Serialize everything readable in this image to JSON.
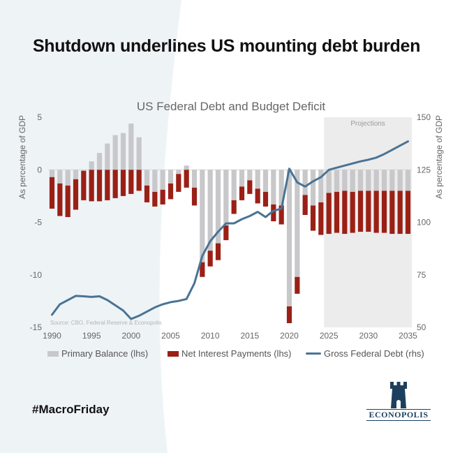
{
  "headline": "Shutdown underlines US mounting debt burden",
  "hashtag": "#MacroFriday",
  "logo": {
    "text": "ECONOPOLIS"
  },
  "colors": {
    "primary_balance": "#c8c8ca",
    "net_interest": "#9a2016",
    "gross_debt": "#4a7394",
    "projection_shade": "#ececec",
    "background_shape": "#eef3f6"
  },
  "chart_data": {
    "type": "bar",
    "title": "US Federal Debt and Budget Deficit",
    "ylabel_left": "As percentage of GDP",
    "ylabel_right": "As percentage of GDP",
    "source": "Source: CBO, Federal Reserve  & Econopolis",
    "projections_label": "Projections",
    "projection_start": 2025,
    "ylim_left": [
      -15,
      5
    ],
    "ylim_right": [
      50,
      150
    ],
    "yticks_left": [
      5,
      0,
      -5,
      -10,
      -15
    ],
    "yticks_right": [
      150,
      125,
      100,
      75,
      50
    ],
    "xticks": [
      1990,
      1995,
      2000,
      2005,
      2010,
      2015,
      2020,
      2025,
      2030,
      2035
    ],
    "years": [
      1990,
      1991,
      1992,
      1993,
      1994,
      1995,
      1996,
      1997,
      1998,
      1999,
      2000,
      2001,
      2002,
      2003,
      2004,
      2005,
      2006,
      2007,
      2008,
      2009,
      2010,
      2011,
      2012,
      2013,
      2014,
      2015,
      2016,
      2017,
      2018,
      2019,
      2020,
      2021,
      2022,
      2023,
      2024,
      2025,
      2026,
      2027,
      2028,
      2029,
      2030,
      2031,
      2032,
      2033,
      2034,
      2035
    ],
    "legend": [
      "Primary Balance (lhs)",
      "Net Interest Payments (lhs)",
      "Gross Federal Debt (rhs)"
    ],
    "series": [
      {
        "name": "Primary Balance (lhs)",
        "axis": "left",
        "kind": "bar",
        "values": [
          -0.7,
          -1.3,
          -1.5,
          -0.9,
          -0.1,
          0.8,
          1.6,
          2.5,
          3.3,
          3.5,
          4.4,
          3.1,
          -1.5,
          -2.1,
          -1.9,
          -1.3,
          -0.4,
          0.4,
          -1.7,
          -8.8,
          -7.7,
          -7.0,
          -5.3,
          -2.9,
          -1.6,
          -1.0,
          -1.8,
          -2.1,
          -3.3,
          -3.4,
          -13.0,
          -10.2,
          -2.4,
          -3.4,
          -3.1,
          -2.2,
          -2.1,
          -2.0,
          -2.1,
          -2.0,
          -2.0,
          -2.0,
          -2.0,
          -2.0,
          -2.0,
          -2.0
        ]
      },
      {
        "name": "Net Interest Payments (lhs)",
        "axis": "left",
        "kind": "bar",
        "values": [
          -3.0,
          -3.1,
          -3.0,
          -2.9,
          -2.8,
          -3.0,
          -3.0,
          -2.9,
          -2.7,
          -2.5,
          -2.3,
          -2.0,
          -1.6,
          -1.4,
          -1.4,
          -1.5,
          -1.7,
          -1.7,
          -1.7,
          -1.4,
          -1.5,
          -1.6,
          -1.4,
          -1.3,
          -1.3,
          -1.3,
          -1.4,
          -1.4,
          -1.6,
          -1.8,
          -1.6,
          -1.6,
          -1.9,
          -2.4,
          -3.1,
          -3.9,
          -3.9,
          -4.1,
          -3.9,
          -3.9,
          -3.9,
          -4.0,
          -4.0,
          -4.1,
          -4.1,
          -4.1
        ]
      },
      {
        "name": "Gross Federal Debt (rhs)",
        "axis": "right",
        "kind": "line",
        "values": [
          56,
          61,
          63,
          65,
          64.8,
          64.5,
          64.8,
          63,
          60.5,
          58,
          54,
          55.5,
          57.5,
          59.5,
          61,
          62,
          62.6,
          63.5,
          71,
          84,
          91,
          95.5,
          99.5,
          99.5,
          101.5,
          103,
          105,
          102.5,
          105.5,
          106.5,
          125.5,
          119,
          117,
          119.5,
          121.5,
          125,
          126,
          127,
          128,
          129,
          129.8,
          130.8,
          132.5,
          134.5,
          136.5,
          138.5
        ]
      }
    ]
  }
}
